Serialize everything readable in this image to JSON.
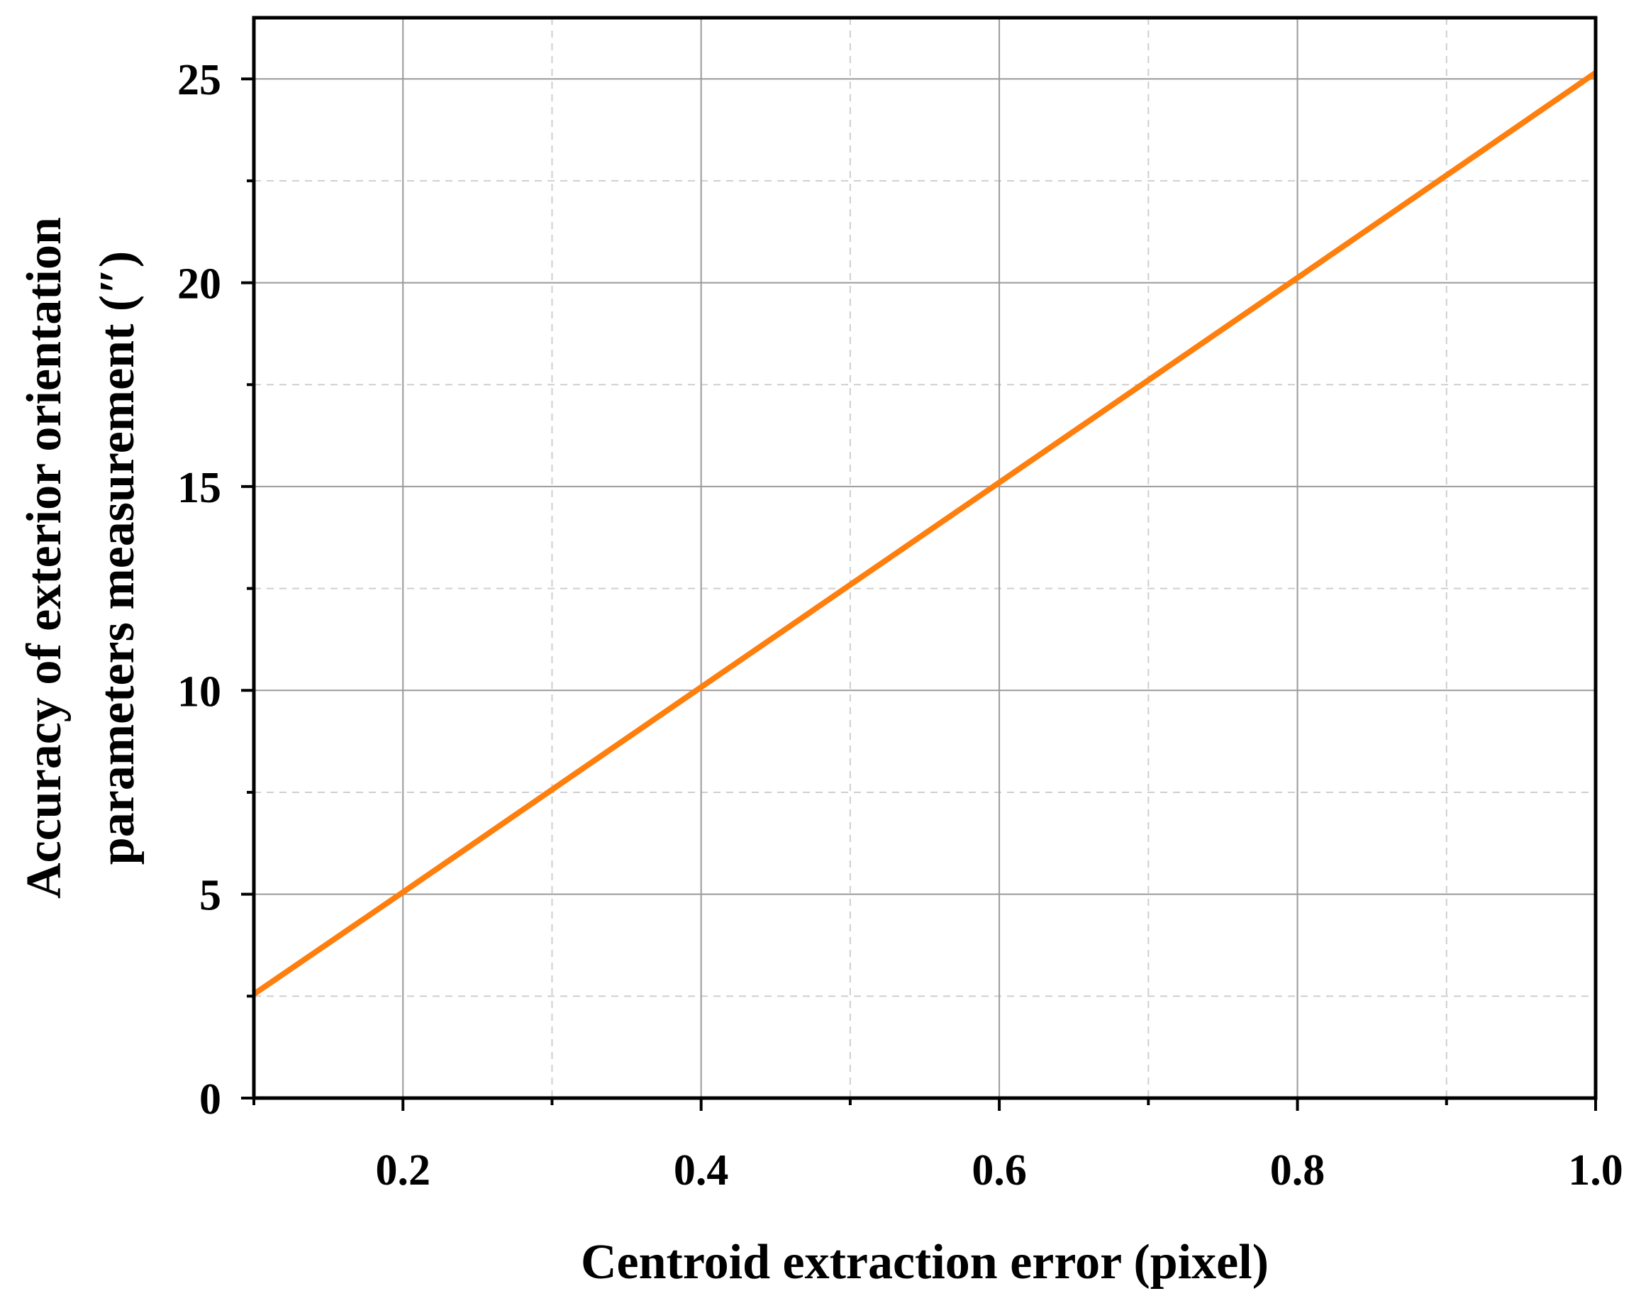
{
  "chart_data": {
    "type": "line",
    "title": "",
    "xlabel": "Centroid extraction error (pixel)",
    "ylabel_lines": [
      "Accuracy of exterior orientation",
      "parameters measurement (″)"
    ],
    "xlim": [
      0.1,
      1.0
    ],
    "ylim": [
      0,
      26.5
    ],
    "x_major_ticks": [
      0.2,
      0.4,
      0.6,
      0.8,
      1.0
    ],
    "x_tick_labels": [
      "0.2",
      "0.4",
      "0.6",
      "0.8",
      "1.0"
    ],
    "x_minor_ticks": [
      0.1,
      0.3,
      0.5,
      0.7,
      0.9
    ],
    "y_major_ticks": [
      0,
      5,
      10,
      15,
      20,
      25
    ],
    "y_tick_labels": [
      "0",
      "5",
      "10",
      "15",
      "20",
      "25"
    ],
    "y_minor_ticks": [
      2.5,
      7.5,
      12.5,
      17.5,
      22.5
    ],
    "grid": true,
    "series": [
      {
        "color": "#ff7f0e",
        "x": [
          0.1,
          0.2,
          0.4,
          0.6,
          0.8,
          1.0
        ],
        "y": [
          2.55,
          5.05,
          10.08,
          15.1,
          20.12,
          25.15
        ]
      }
    ]
  }
}
